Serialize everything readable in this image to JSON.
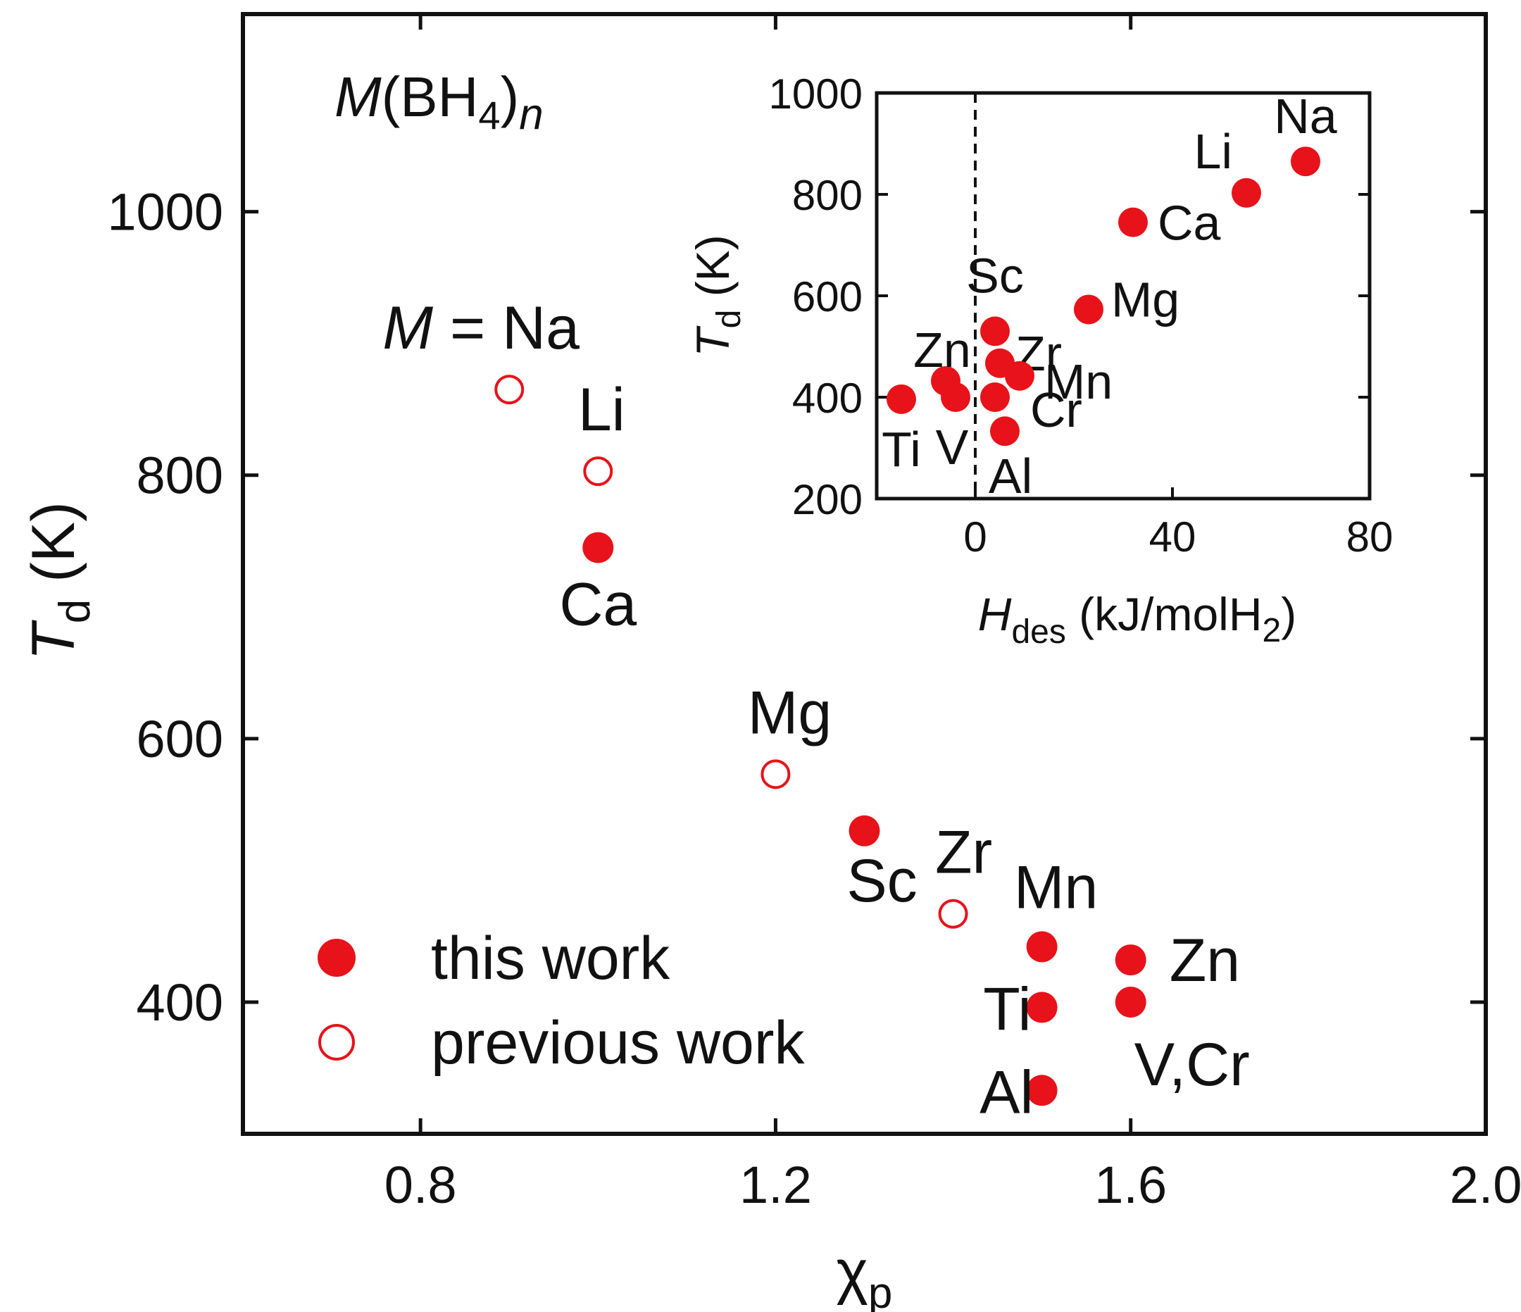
{
  "chart_data": [
    {
      "type": "scatter",
      "title": "",
      "xlabel": "χp",
      "ylabel": "Td (K)",
      "xlim": [
        0.6,
        2.0
      ],
      "ylim": [
        300,
        1150
      ],
      "xticks": [
        "0.8",
        "1.2",
        "1.6",
        "2.0"
      ],
      "yticks": [
        "400",
        "600",
        "800",
        "1000"
      ],
      "formula_annotation": "M(BH4)n",
      "grid": false,
      "legend_position": "bottom-left",
      "series": [
        {
          "name": "this work",
          "marker": "filled-circle",
          "points": [
            {
              "label": "Ca",
              "x": 1.0,
              "y": 745
            },
            {
              "label": "Sc",
              "x": 1.3,
              "y": 530
            },
            {
              "label": "Mn",
              "x": 1.5,
              "y": 442
            },
            {
              "label": "Ti",
              "x": 1.5,
              "y": 396
            },
            {
              "label": "Al",
              "x": 1.5,
              "y": 333
            },
            {
              "label": "Zn",
              "x": 1.6,
              "y": 432
            },
            {
              "label": "V,Cr",
              "x": 1.6,
              "y": 400
            }
          ]
        },
        {
          "name": "previous work",
          "marker": "open-circle",
          "points": [
            {
              "label": "M = Na",
              "x": 0.9,
              "y": 865
            },
            {
              "label": "Li",
              "x": 1.0,
              "y": 803
            },
            {
              "label": "Mg",
              "x": 1.2,
              "y": 573
            },
            {
              "label": "Zr",
              "x": 1.4,
              "y": 467
            }
          ]
        }
      ]
    },
    {
      "type": "scatter",
      "title": "",
      "xlabel": "Hdes (kJ/molH2)",
      "ylabel": "Td (K)",
      "xlim": [
        -20,
        80
      ],
      "ylim": [
        200,
        1000
      ],
      "xticks": [
        "0",
        "40",
        "80"
      ],
      "yticks": [
        "200",
        "400",
        "600",
        "800",
        "1000"
      ],
      "reference_line": {
        "x": 0,
        "style": "dashed"
      },
      "grid": false,
      "series": [
        {
          "name": "",
          "marker": "filled-circle",
          "points": [
            {
              "label": "Na",
              "x": 67,
              "y": 865
            },
            {
              "label": "Li",
              "x": 55,
              "y": 803
            },
            {
              "label": "Ca",
              "x": 32,
              "y": 745
            },
            {
              "label": "Mg",
              "x": 23,
              "y": 573
            },
            {
              "label": "Sc",
              "x": 4,
              "y": 530
            },
            {
              "label": "Zr",
              "x": 5,
              "y": 467
            },
            {
              "label": "Mn",
              "x": 9,
              "y": 442
            },
            {
              "label": "Zn",
              "x": -6,
              "y": 432
            },
            {
              "label": "Ti",
              "x": -15,
              "y": 396
            },
            {
              "label": "V",
              "x": -4,
              "y": 400
            },
            {
              "label": "Cr",
              "x": 4,
              "y": 400
            },
            {
              "label": "Al",
              "x": 6,
              "y": 333
            }
          ]
        }
      ]
    }
  ],
  "colors": {
    "marker": "#e8121a",
    "axis": "#111111",
    "background": "#ffffff"
  }
}
